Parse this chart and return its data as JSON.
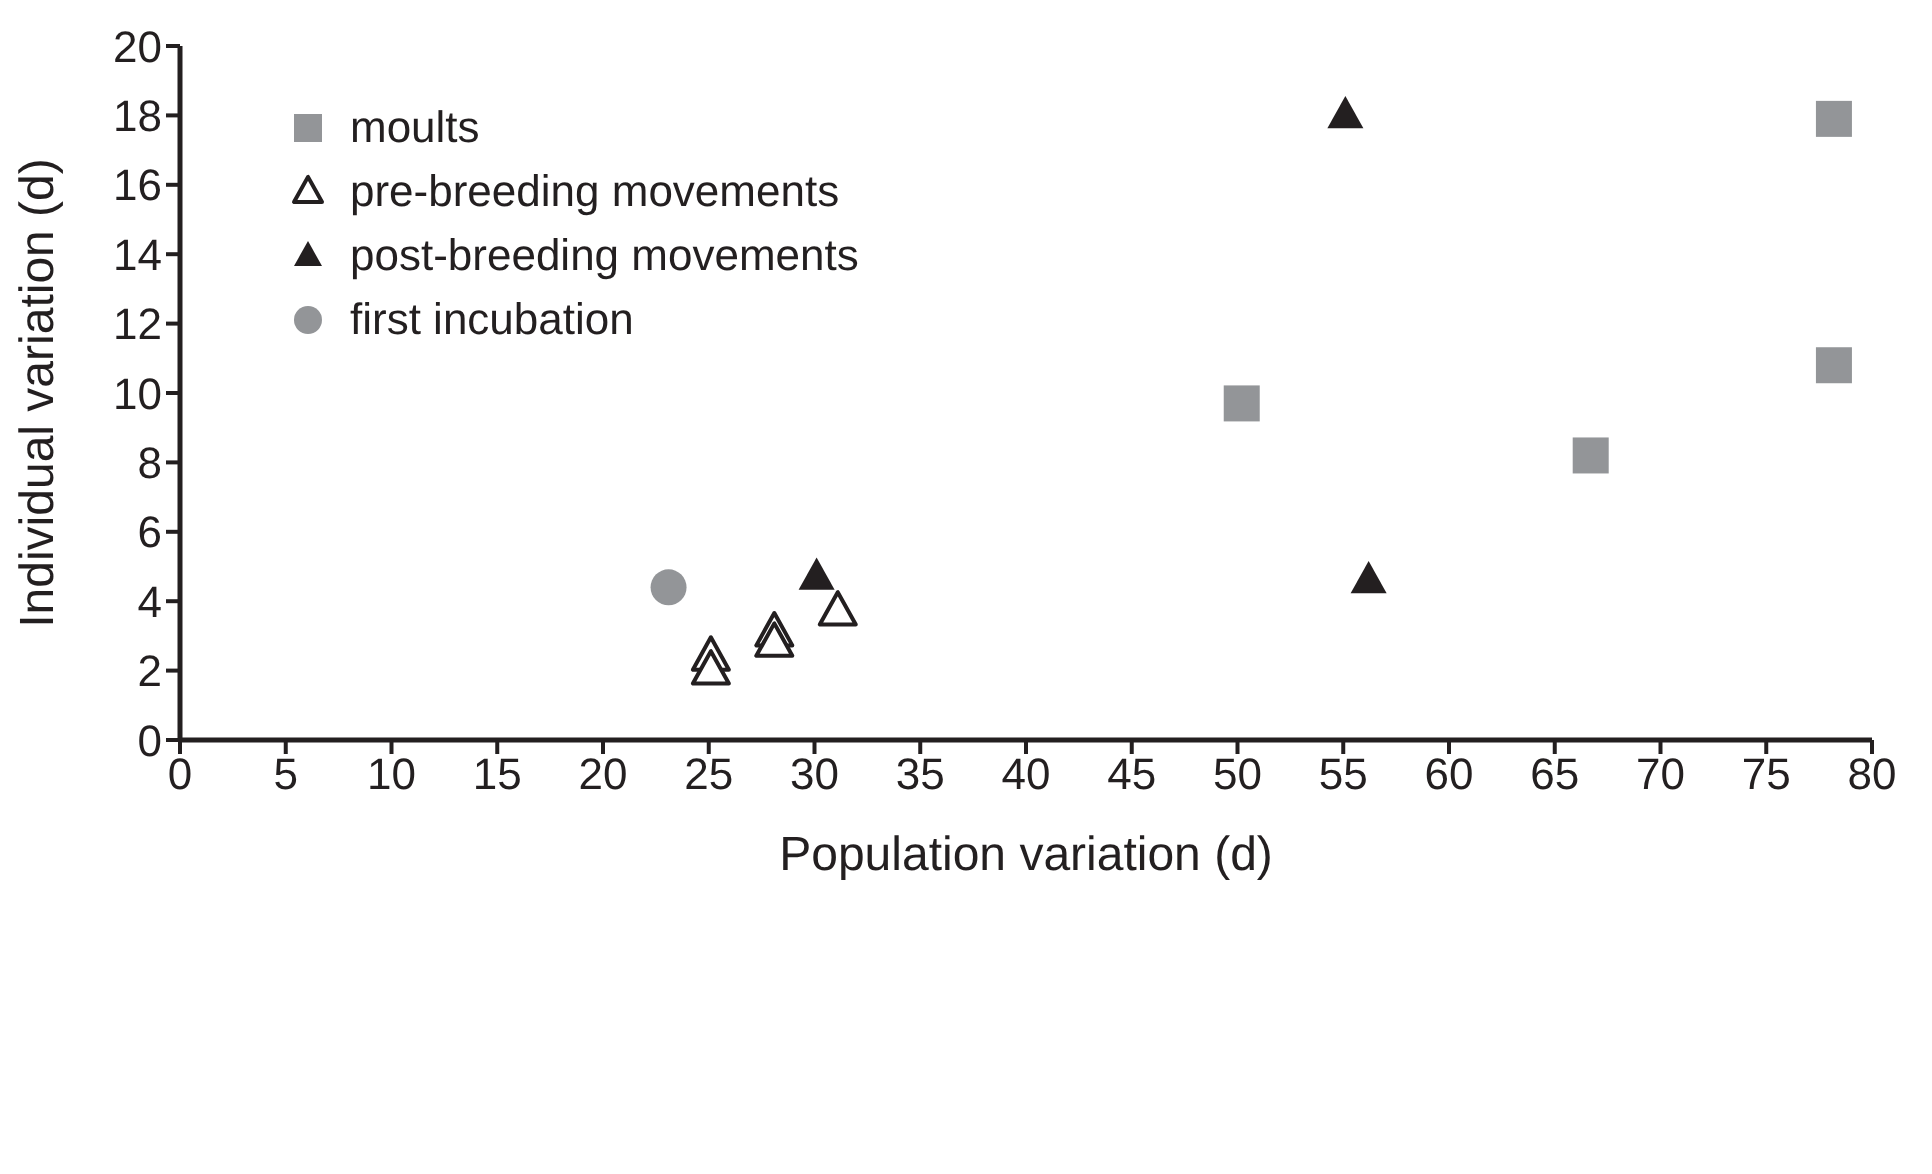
{
  "chart_data": {
    "type": "scatter",
    "xlabel": "Population variation (d)",
    "ylabel": "Individual variation (d)",
    "xlim": [
      0,
      80
    ],
    "xticks": [
      0,
      5,
      10,
      15,
      20,
      25,
      30,
      35,
      40,
      45,
      50,
      55,
      60,
      65,
      70,
      75,
      80
    ],
    "ylim": [
      0,
      20
    ],
    "yticks": [
      0,
      2,
      4,
      6,
      8,
      10,
      12,
      14,
      16,
      18,
      20
    ],
    "grid": false,
    "legend": "top left",
    "series": [
      {
        "name": "moults",
        "color": "#939598",
        "marker": "square",
        "x": [
          50.2,
          66.7,
          78.2,
          78.2
        ],
        "values": [
          9.7,
          8.2,
          17.9,
          10.8
        ]
      },
      {
        "name": "pre-breeding movements",
        "color": "#231f20",
        "marker": "triangle-open",
        "x": [
          25.1,
          25.1,
          28.1,
          28.1,
          31.1
        ],
        "values": [
          2.4,
          2.0,
          3.1,
          2.8,
          3.7
        ]
      },
      {
        "name": "post-breeding movements",
        "color": "#231f20",
        "marker": "triangle",
        "x": [
          30.1,
          55.1,
          56.2
        ],
        "values": [
          4.7,
          18.0,
          4.6
        ]
      },
      {
        "name": "first incubation",
        "color": "#939598",
        "marker": "circle",
        "x": [
          23.1
        ],
        "values": [
          4.4
        ]
      }
    ]
  }
}
